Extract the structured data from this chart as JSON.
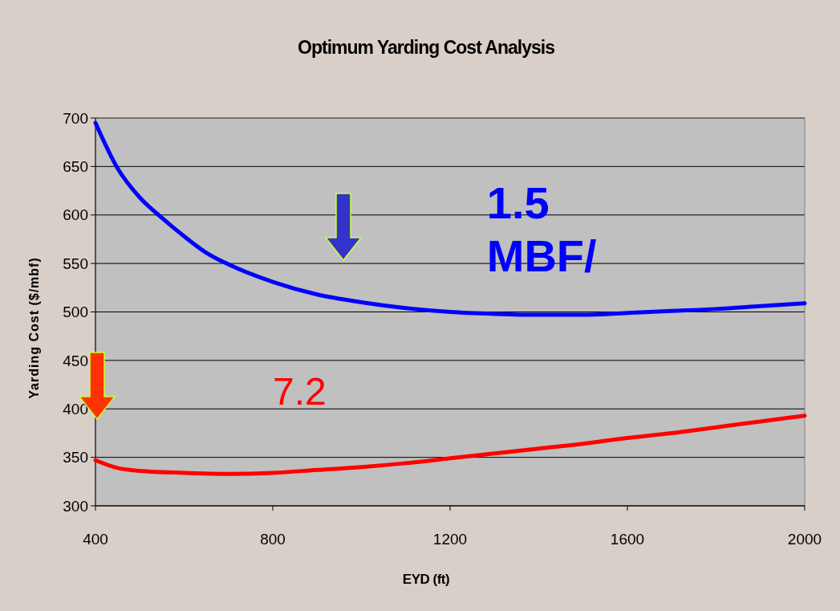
{
  "chart_data": {
    "type": "line",
    "title": "Optimum Yarding Cost Analysis",
    "xlabel": "EYD (ft)",
    "ylabel": "Yarding Cost ($/mbf)",
    "xlim": [
      400,
      2000
    ],
    "xticks": [
      400,
      800,
      1200,
      1600,
      2000
    ],
    "ylim": [
      300,
      700
    ],
    "yticks": [
      300,
      350,
      400,
      450,
      500,
      550,
      600,
      650,
      700
    ],
    "grid": "y",
    "line_style": "solid",
    "series": [
      {
        "name": "1.5 MBF/",
        "color": "#0000ff",
        "x": [
          400,
          450,
          500,
          550,
          600,
          650,
          700,
          800,
          900,
          1000,
          1100,
          1200,
          1300,
          1400,
          1500,
          1600,
          1700,
          1800,
          1900,
          2000
        ],
        "values": [
          695,
          648,
          618,
          597,
          578,
          561,
          549,
          531,
          518,
          510,
          504,
          500,
          498,
          497,
          497,
          499,
          501,
          503,
          506,
          509
        ]
      },
      {
        "name": "7.2",
        "color": "#ff0000",
        "x": [
          400,
          450,
          500,
          600,
          700,
          800,
          900,
          1000,
          1100,
          1200,
          1300,
          1400,
          1500,
          1600,
          1700,
          1800,
          1900,
          2000
        ],
        "values": [
          347,
          339,
          336,
          334,
          333,
          334,
          337,
          340,
          344,
          349,
          354,
          359,
          364,
          370,
          375,
          381,
          387,
          393
        ]
      }
    ]
  }
}
